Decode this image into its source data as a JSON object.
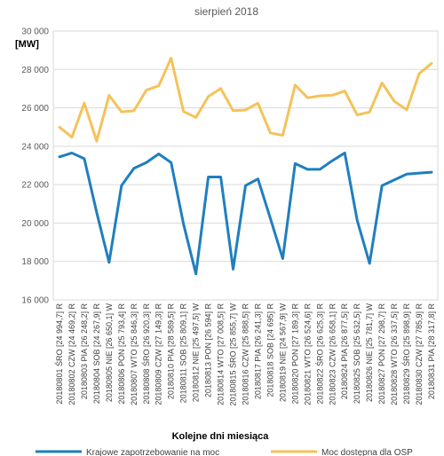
{
  "chart_data": {
    "type": "line",
    "title": "sierpień 2018",
    "unit_label": "[MW]",
    "xlabel": "Kolejne dni miesiąca",
    "ylim": [
      16000,
      30000
    ],
    "ytick_values": [
      16000,
      18000,
      20000,
      22000,
      24000,
      26000,
      28000,
      30000
    ],
    "ytick_labels": [
      "16 000",
      "18 000",
      "20 000",
      "22 000",
      "24 000",
      "26 000",
      "28 000",
      "30 000"
    ],
    "grid": true,
    "legend_position": "bottom",
    "categories": [
      "20180801 ŚRO [24 994,7] R",
      "20180802 CZW [24 469,2] R",
      "20180803 PIA [26 248,2] R",
      "20180804 SOB [24 267,9] R",
      "20180805 NIE [26 650,1] W",
      "20180806 PON [25 793,4] R",
      "20180807 WTO [25 846,3] R",
      "20180808 ŚRO [26 920,3] R",
      "20180809 CZW [27 149,3] R",
      "20180810 PIA [28 589,5] R",
      "20180811 SOB [25 809,1] R",
      "20180812 NIE [25 497,5] W",
      "20180813 PON [26 594] R",
      "20180814 WTO [27 008,5] R",
      "20180815 ŚRO [25 855,7] W",
      "20180816 CZW [25 888,5] R",
      "20180817 PIA [26 241,3] R",
      "20180818 SOB [24 695] R",
      "20180819 NIE [24 567,9] W",
      "20180820 PON [27 189,3] R",
      "20180821 WTO [26 524,6] R",
      "20180822 ŚRO [26 625,3] R",
      "20180823 CZW [26 658,1] R",
      "20180824 PIA [26 877,5] R",
      "20180825 SOB [25 632,5] R",
      "20180826 NIE [25 781,7] W",
      "20180827 PON [27 298,7] R",
      "20180828 WTO [26 337,5] R",
      "20180829 ŚRO [25 898,9] R",
      "20180830 CZW [27 785,9] R",
      "20180831 PIA [28 317,8] R"
    ],
    "series": [
      {
        "name": "Krajowe zapotrzebowanie na moc",
        "color": "#1f7fbf",
        "values": [
          23450,
          23650,
          23350,
          20550,
          17950,
          21950,
          22850,
          23150,
          23600,
          23150,
          19950,
          17350,
          22400,
          22400,
          17600,
          21950,
          22300,
          20250,
          18150,
          23100,
          22800,
          22800,
          23250,
          23650,
          20150,
          17900,
          21950,
          22250,
          22550,
          22600,
          22650
        ]
      },
      {
        "name": "Moc dostępna dla OSP",
        "color": "#f5c25a",
        "values": [
          24994.7,
          24469.2,
          26248.2,
          24267.9,
          26650.1,
          25793.4,
          25846.3,
          26920.3,
          27149.3,
          28589.5,
          25809.1,
          25497.5,
          26594,
          27008.5,
          25855.7,
          25888.5,
          26241.3,
          24695,
          24567.9,
          27189.3,
          26524.6,
          26625.3,
          26658.1,
          26877.5,
          25632.5,
          25781.7,
          27298.7,
          26337.5,
          25898.9,
          27785.9,
          28317.8
        ]
      }
    ]
  }
}
